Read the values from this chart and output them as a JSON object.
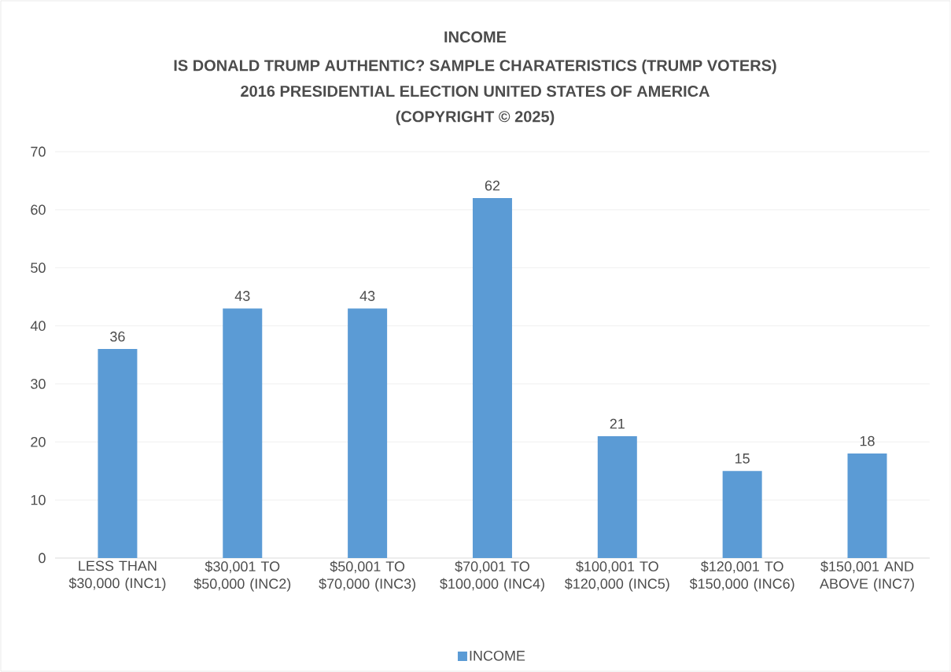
{
  "chart_data": {
    "type": "bar",
    "title": "INCOME",
    "subtitle": "IS DONALD TRUMP AUTHENTIC? SAMPLE CHARATERISTICS (TRUMP VOTERS)",
    "annotations": [
      "2016 PRESIDENTIAL ELECTION UNITED STATES OF AMERICA",
      "(COPYRIGHT © 2025)"
    ],
    "categories": [
      "LESS THAN $30,000 (INC1)",
      "$30,001 TO $50,000 (INC2)",
      "$50,001 TO $70,000 (INC3)",
      "$70,001 TO $100,000 (INC4)",
      "$100,001 TO $120,000 (INC5)",
      "$120,001 TO $150,000 (INC6)",
      "$150,001 AND ABOVE (INC7)"
    ],
    "series": [
      {
        "name": "INCOME",
        "color": "#5b9bd5",
        "values": [
          36,
          43,
          43,
          62,
          21,
          15,
          18
        ]
      }
    ],
    "ylim": [
      0,
      70
    ],
    "yticks": [
      0,
      10,
      20,
      30,
      40,
      50,
      60,
      70
    ],
    "grid": "y",
    "legend": "bottom",
    "data_labels": true
  }
}
